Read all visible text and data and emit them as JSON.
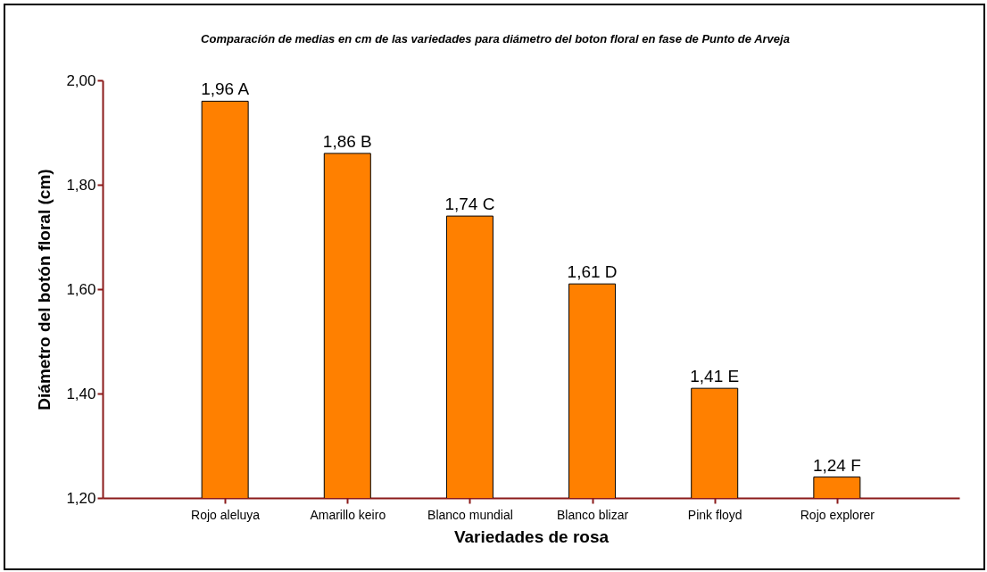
{
  "chart_data": {
    "type": "bar",
    "title": "Comparación de medias en cm de las variedades para diámetro del boton floral en fase de Punto de Arveja",
    "xlabel": "Variedades de rosa",
    "ylabel": "Diámetro del botón floral (cm)",
    "categories": [
      "Rojo aleluya",
      "Amarillo keiro",
      "Blanco mundial",
      "Blanco blizar",
      "Pink floyd",
      "Rojo explorer"
    ],
    "values": [
      1.96,
      1.86,
      1.74,
      1.61,
      1.41,
      1.24
    ],
    "value_labels": [
      "1,96 A",
      "1,86 B",
      "1,74 C",
      "1,61 D",
      "1,41 E",
      "1,24 F"
    ],
    "color": "#ff8000",
    "ylim": [
      1.2,
      2.0
    ],
    "yticks": [
      {
        "value": 1.2,
        "label": "1,20"
      },
      {
        "value": 1.4,
        "label": "1,40"
      },
      {
        "value": 1.6,
        "label": "1,60"
      },
      {
        "value": 1.8,
        "label": "1,80"
      },
      {
        "value": 2.0,
        "label": "2,00"
      }
    ],
    "grid": false
  }
}
